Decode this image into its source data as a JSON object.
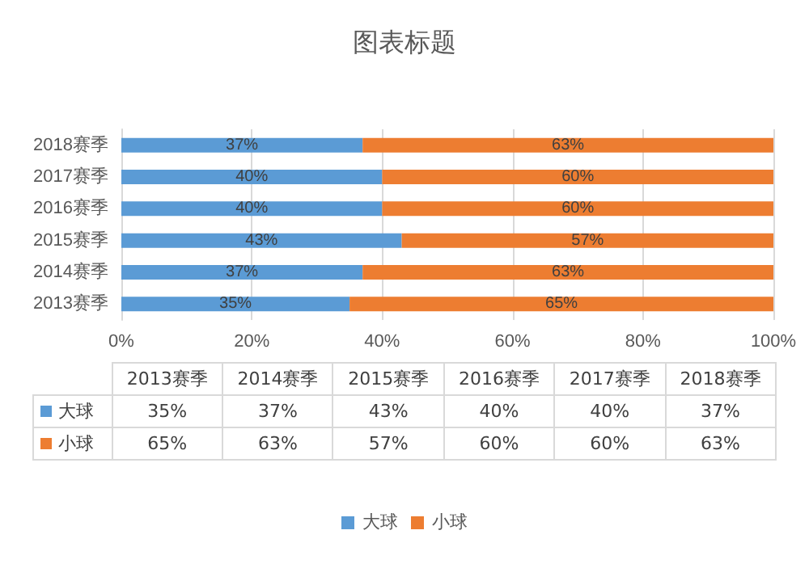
{
  "chart_data": {
    "type": "bar",
    "title": "图表标题",
    "orientation": "horizontal",
    "stacked": true,
    "categories": [
      "2018赛季",
      "2017赛季",
      "2016赛季",
      "2015赛季",
      "2014赛季",
      "2013赛季"
    ],
    "series": [
      {
        "name": "大球",
        "color": "#5b9bd5",
        "values": [
          37,
          40,
          40,
          43,
          37,
          35
        ],
        "value_labels": [
          "37%",
          "40%",
          "40%",
          "43%",
          "37%",
          "35%"
        ]
      },
      {
        "name": "小球",
        "color": "#ed7d31",
        "values": [
          63,
          60,
          60,
          57,
          63,
          65
        ],
        "value_labels": [
          "63%",
          "60%",
          "60%",
          "57%",
          "63%",
          "65%"
        ]
      }
    ],
    "xlim": [
      0,
      100
    ],
    "xticks": [
      {
        "value": 0,
        "label": "0%"
      },
      {
        "value": 20,
        "label": "20%"
      },
      {
        "value": 40,
        "label": "40%"
      },
      {
        "value": 60,
        "label": "60%"
      },
      {
        "value": 80,
        "label": "80%"
      },
      {
        "value": 100,
        "label": "100%"
      }
    ],
    "grid": "x",
    "legend": "bottom"
  }
}
